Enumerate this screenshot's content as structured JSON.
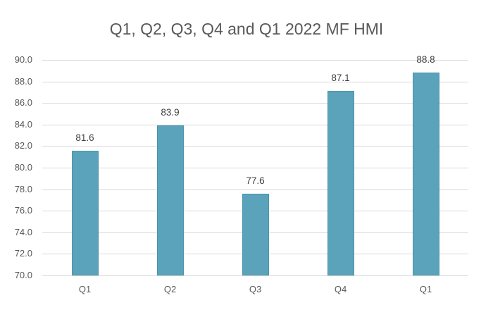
{
  "chart_data": {
    "type": "bar",
    "title": "Q1, Q2, Q3, Q4 and Q1 2022 MF HMI",
    "categories": [
      "Q1",
      "Q2",
      "Q3",
      "Q4",
      "Q1"
    ],
    "values": [
      81.6,
      83.9,
      77.6,
      87.1,
      88.8
    ],
    "data_labels": [
      "81.6",
      "83.9",
      "77.6",
      "87.1",
      "88.8"
    ],
    "xlabel": "",
    "ylabel": "",
    "ylim": [
      70.0,
      90.0
    ],
    "yticks": [
      "90.0",
      "88.0",
      "86.0",
      "84.0",
      "82.0",
      "80.0",
      "78.0",
      "76.0",
      "74.0",
      "72.0",
      "70.0"
    ],
    "grid": true,
    "legend": "none",
    "bar_color": "#5aa3ba"
  }
}
